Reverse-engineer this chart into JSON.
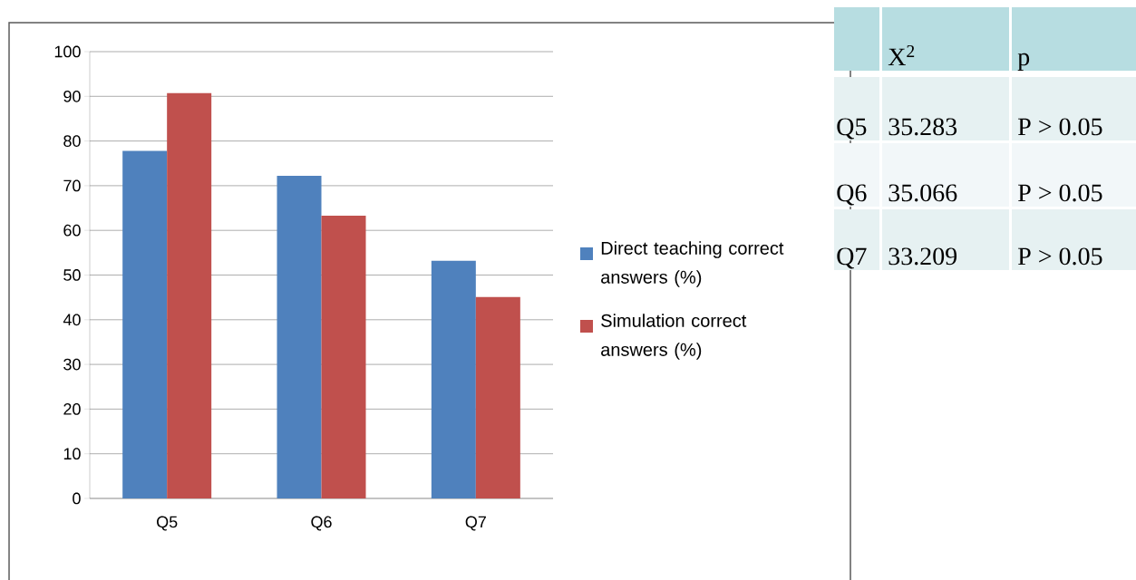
{
  "chart_data": [
    {
      "type": "bar",
      "categories": [
        "Q5",
        "Q6",
        "Q7"
      ],
      "series": [
        {
          "name": "Direct teaching correct answers (%)",
          "color": "#4f81bd",
          "values": [
            77.8,
            72.2,
            53.2
          ]
        },
        {
          "name": "Simulation correct answers (%)",
          "color": "#c0504d",
          "values": [
            90.7,
            63.3,
            45.1
          ]
        }
      ],
      "ylim": [
        0,
        100
      ],
      "yticks": [
        0,
        10,
        20,
        30,
        40,
        50,
        60,
        70,
        80,
        90,
        100
      ],
      "grid": "y",
      "legend": "right"
    },
    {
      "type": "other",
      "annotations": [
        "X$^{2}$",
        "p",
        "Q5",
        "35.283",
        "P > 0.05",
        "Q6",
        "35.066",
        "P > 0.05",
        "Q7",
        "33.209",
        "P > 0.05"
      ]
    }
  ]
}
